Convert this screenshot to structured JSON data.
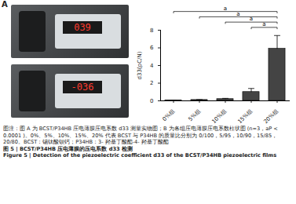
{
  "panel_a": {
    "label": "A",
    "readings": [
      "039",
      "-036"
    ]
  },
  "chart_data": {
    "type": "bar",
    "label": "B",
    "ylabel": "d33(pC/N)",
    "categories": [
      "0%组",
      "5%组",
      "10%组",
      "15%组",
      "20%组"
    ],
    "values": [
      0.05,
      0.1,
      0.2,
      1.0,
      5.9
    ],
    "errors": [
      0.02,
      0.04,
      0.08,
      0.4,
      1.5
    ],
    "color": "#444444",
    "ylim": [
      0,
      8
    ],
    "yticks": [
      0,
      2,
      4,
      6,
      8
    ],
    "significance": [
      {
        "from": "0%组",
        "to": "20%组",
        "label": "a"
      },
      {
        "from": "5%组",
        "to": "20%组",
        "label": "a"
      },
      {
        "from": "10%组",
        "to": "20%组",
        "label": "a"
      },
      {
        "from": "15%组",
        "to": "20%组",
        "label": "a"
      }
    ]
  },
  "caption": {
    "note": "图注：图 A 为 BCST/P34HB 压电薄膜压电系数 d33 测量实物图；B 为各组压电薄膜压电系数柱状图 (n=3，aP < 0.0001 )。0%、5%、10%、15%、20% 代表 BCST 与 P34HB 的质量比分别为 0/100，5/95，10/90，15/85，20/80。BCST：锡钛酸钡钙；P34HB：3- 羟基丁酸酯-4- 羟基丁酸酯",
    "title_zh": "图 5 | BCST/P34HB 压电薄膜的压电系数 d33 检测",
    "title_en": "Figure 5 | Detection of the piezoelectric coefficient d33 of the BCST/P34HB piezoelectric films"
  }
}
